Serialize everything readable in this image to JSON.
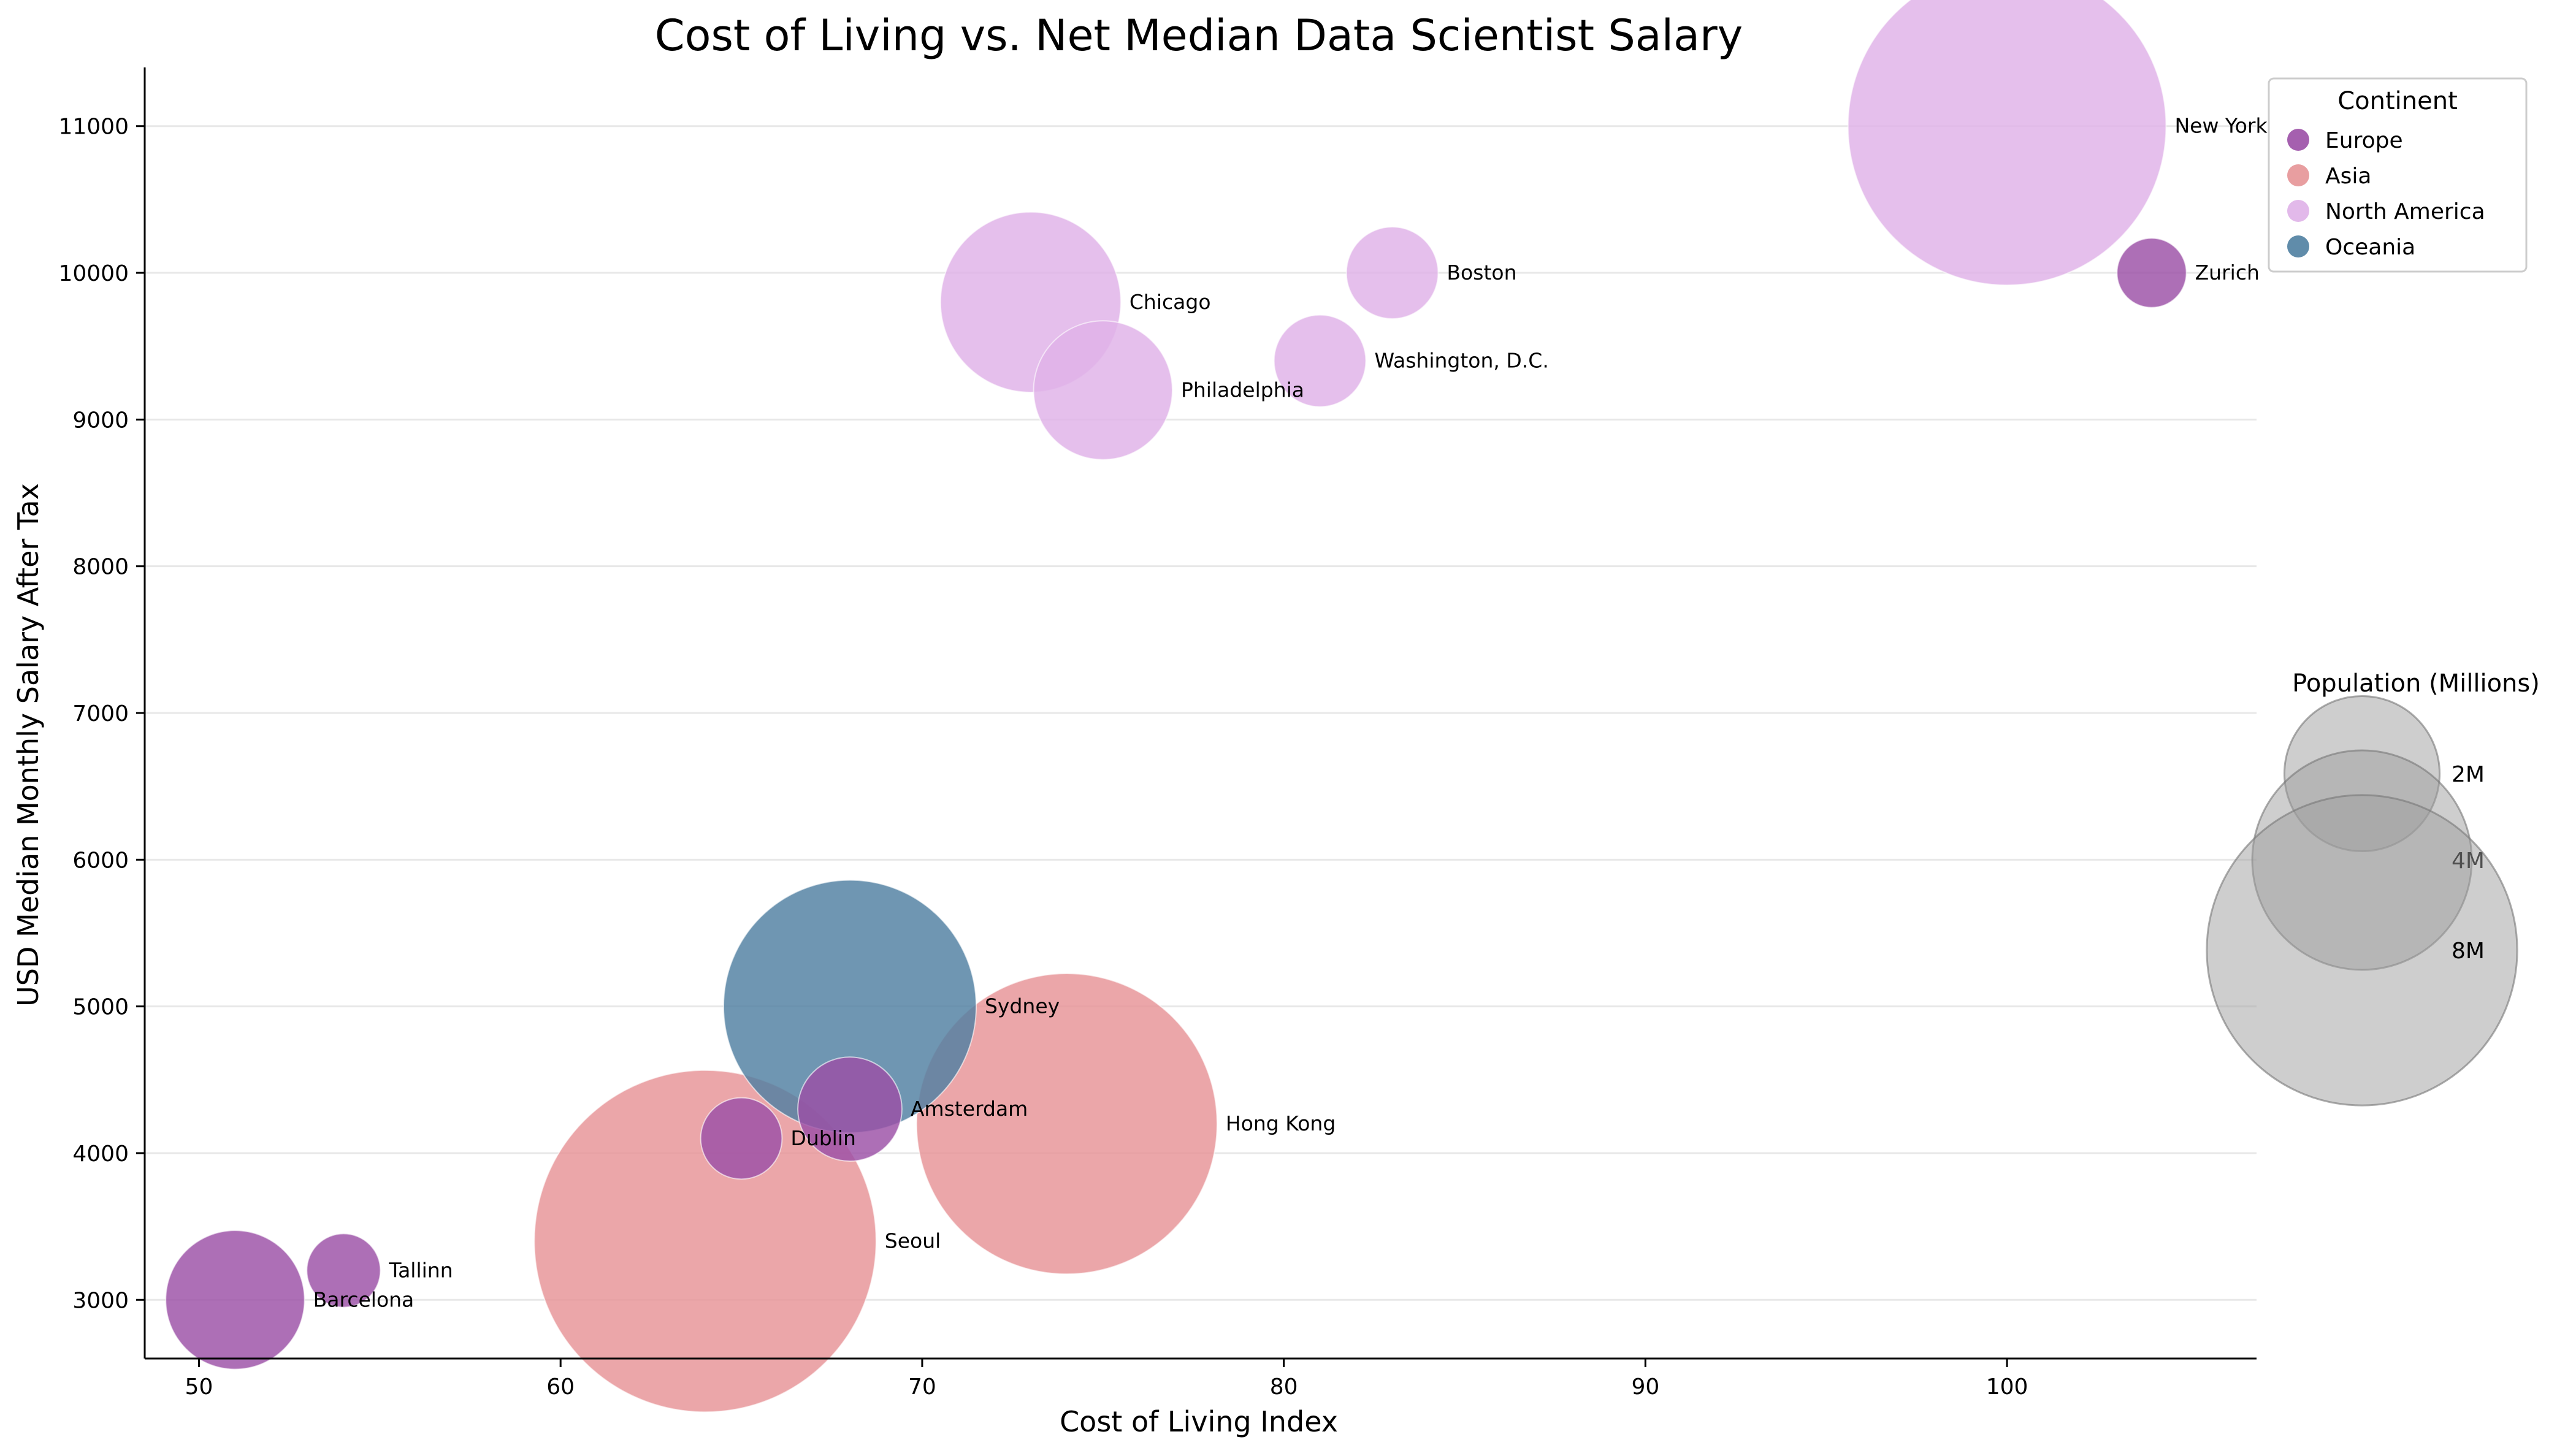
{
  "chart_data": {
    "type": "scatter",
    "title": "Cost of Living vs. Net Median Data Scientist Salary",
    "xlabel": "Cost of Living Index",
    "ylabel": "USD Median Monthly Salary After Tax",
    "xlim": [
      48.5,
      106.9
    ],
    "ylim": [
      2600,
      11400
    ],
    "xticks": [
      50,
      60,
      70,
      80,
      90,
      100
    ],
    "yticks": [
      3000,
      4000,
      5000,
      6000,
      7000,
      8000,
      9000,
      10000,
      11000
    ],
    "grid": "horizontal",
    "legend": {
      "title": "Continent",
      "placement": "top-right",
      "entries": [
        {
          "name": "Europe",
          "color": "#9b4fa6"
        },
        {
          "name": "Asia",
          "color": "#e69396"
        },
        {
          "name": "North America",
          "color": "#dfb1e8"
        },
        {
          "name": "Oceania",
          "color": "#4f7fa1"
        }
      ]
    },
    "size_legend": {
      "title": "Population (Millions)",
      "placement": "right",
      "entries": [
        {
          "label": "2M",
          "value": 2
        },
        {
          "label": "4M",
          "value": 4
        },
        {
          "label": "8M",
          "value": 8
        }
      ]
    },
    "points": [
      {
        "city": "New York",
        "continent": "North America",
        "x": 100,
        "y": 11000,
        "population": 8.4
      },
      {
        "city": "Zurich",
        "continent": "Europe",
        "x": 104,
        "y": 10000,
        "population": 0.4
      },
      {
        "city": "Boston",
        "continent": "North America",
        "x": 83,
        "y": 10000,
        "population": 0.7
      },
      {
        "city": "Chicago",
        "continent": "North America",
        "x": 73,
        "y": 9800,
        "population": 2.7
      },
      {
        "city": "Washington, D.C.",
        "continent": "North America",
        "x": 81,
        "y": 9400,
        "population": 0.7
      },
      {
        "city": "Philadelphia",
        "continent": "North America",
        "x": 75,
        "y": 9200,
        "population": 1.6
      },
      {
        "city": "Sydney",
        "continent": "Oceania",
        "x": 68,
        "y": 5000,
        "population": 5.3
      },
      {
        "city": "Amsterdam",
        "continent": "Europe",
        "x": 68,
        "y": 4300,
        "population": 0.9
      },
      {
        "city": "Hong Kong",
        "continent": "Asia",
        "x": 74,
        "y": 4200,
        "population": 7.5
      },
      {
        "city": "Dublin",
        "continent": "Europe",
        "x": 65,
        "y": 4100,
        "population": 0.55
      },
      {
        "city": "Seoul",
        "continent": "Asia",
        "x": 64,
        "y": 3400,
        "population": 9.7
      },
      {
        "city": "Tallinn",
        "continent": "Europe",
        "x": 54,
        "y": 3200,
        "population": 0.45
      },
      {
        "city": "Barcelona",
        "continent": "Europe",
        "x": 51,
        "y": 3000,
        "population": 1.6
      }
    ]
  }
}
